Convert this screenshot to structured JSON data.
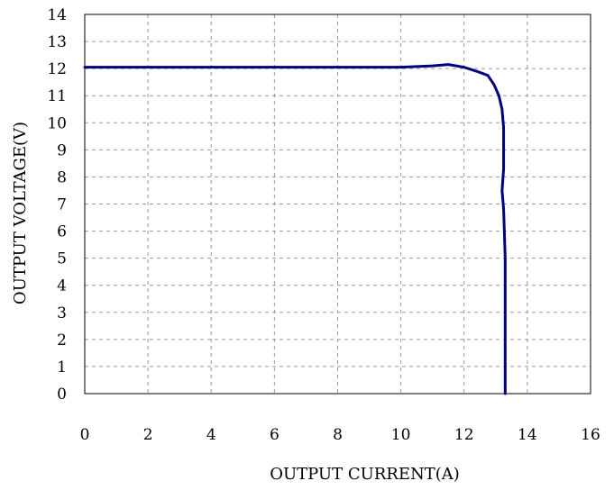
{
  "chart_data": {
    "type": "line",
    "title": "",
    "xlabel": "OUTPUT CURRENT(A)",
    "ylabel": "OUTPUT VOLTAGE(V)",
    "xlim": [
      0,
      16
    ],
    "ylim": [
      0,
      14
    ],
    "x_ticks": [
      0,
      2,
      4,
      6,
      8,
      10,
      12,
      14,
      16
    ],
    "y_ticks": [
      0,
      1,
      2,
      3,
      4,
      5,
      6,
      7,
      8,
      9,
      10,
      11,
      12,
      13,
      14
    ],
    "grid": true,
    "grid_style": "dashed",
    "legend": "none",
    "series": [
      {
        "color": "#000080",
        "x": [
          0,
          2,
          4,
          6,
          8,
          10,
          11,
          11.5,
          12,
          12.4,
          12.75,
          12.95,
          13.1,
          13.2,
          13.25,
          13.25,
          13.2,
          13.25,
          13.3,
          13.3,
          13.3
        ],
        "y": [
          12.05,
          12.05,
          12.05,
          12.05,
          12.05,
          12.05,
          12.1,
          12.15,
          12.05,
          11.9,
          11.75,
          11.4,
          11.0,
          10.5,
          9.8,
          8.3,
          7.5,
          6.8,
          5,
          2,
          0
        ]
      }
    ]
  }
}
